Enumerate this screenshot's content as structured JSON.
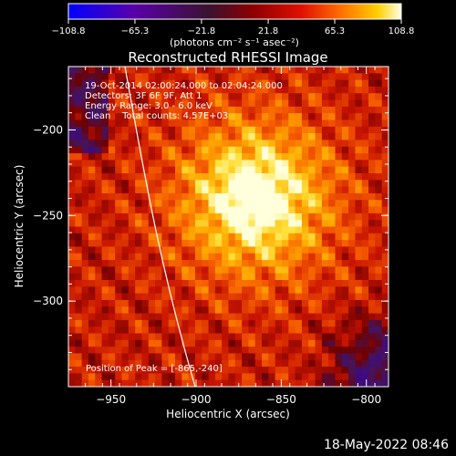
{
  "chart_data": {
    "type": "heatmap",
    "title": "Reconstructed RHESSI Image",
    "xlabel": "Heliocentric X (arcsec)",
    "ylabel": "Heliocentric Y (arcsec)",
    "xlim": [
      -975,
      -787
    ],
    "ylim": [
      -350,
      -163
    ],
    "xticks": [
      -950,
      -900,
      -850,
      -800
    ],
    "xtick_labels": [
      "−950",
      "−900",
      "−850",
      "−800"
    ],
    "yticks": [
      -200,
      -250,
      -300
    ],
    "ytick_labels": [
      "−200",
      "−250",
      "−300"
    ],
    "colorbar": {
      "min": -108.8,
      "max": 108.8,
      "ticks": [
        -108.8,
        -65.3,
        -21.8,
        21.8,
        65.3,
        108.8
      ],
      "tick_labels": [
        "−108.8",
        "−65.3",
        "−21.8",
        "21.8",
        "65.3",
        "108.8"
      ],
      "unit": "(photons cm⁻² s⁻¹ asec⁻²)"
    },
    "annotations": [
      "19-Oct-2014 02:00:24.000 to 02:04:24.000",
      "Detectors: 3F 6F 9F, Att 1",
      "Energy Range: 3.0 - 6.0 keV",
      "Clean    Total counts: 4.57E+03"
    ],
    "peak_label": "Position of Peak = [-865,-240]",
    "peak": {
      "x": -865,
      "y": -240
    },
    "grid": false
  },
  "footer": {
    "timestamp": "18-May-2022 08:46"
  },
  "colors": {
    "background": "#000000",
    "text": "#ffffff",
    "colormap": [
      "#0000ff",
      "#5a00a8",
      "#4a1050",
      "#800000",
      "#e00000",
      "#ff6000",
      "#ffc800",
      "#ffffe8"
    ]
  }
}
